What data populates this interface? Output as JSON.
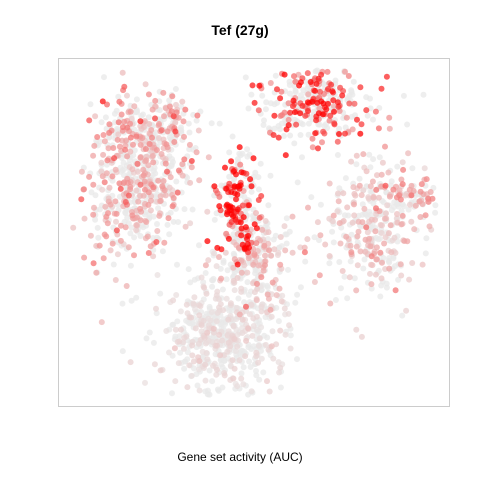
{
  "chart": {
    "title": "Tef (27g)",
    "xlabel": "Gene set activity (AUC)"
  },
  "chart_data": {
    "type": "scatter",
    "title": "Tef (27g)",
    "xlabel": "Gene set activity (AUC)",
    "ylabel": "",
    "grid": false,
    "legend": "none",
    "color_scale": {
      "low": "#e8e8e8",
      "high": "#ff0000"
    },
    "point_opacity": 0.75,
    "clusters": [
      {
        "name": "west",
        "cx": 0.2,
        "cy": 0.64,
        "sx": 0.065,
        "sy": 0.11,
        "n": 520,
        "activity": 0.16
      },
      {
        "name": "west-upper",
        "cx": 0.24,
        "cy": 0.8,
        "sx": 0.07,
        "sy": 0.05,
        "n": 180,
        "activity": 0.22
      },
      {
        "name": "north",
        "cx": 0.66,
        "cy": 0.87,
        "sx": 0.07,
        "sy": 0.055,
        "n": 300,
        "activity": 0.42
      },
      {
        "name": "center-red",
        "cx": 0.46,
        "cy": 0.58,
        "sx": 0.03,
        "sy": 0.08,
        "n": 200,
        "activity": 0.72
      },
      {
        "name": "center",
        "cx": 0.5,
        "cy": 0.42,
        "sx": 0.05,
        "sy": 0.07,
        "n": 200,
        "activity": 0.14
      },
      {
        "name": "east",
        "cx": 0.8,
        "cy": 0.52,
        "sx": 0.07,
        "sy": 0.1,
        "n": 320,
        "activity": 0.12
      },
      {
        "name": "east-arm",
        "cx": 0.91,
        "cy": 0.6,
        "sx": 0.04,
        "sy": 0.025,
        "n": 70,
        "activity": 0.2
      },
      {
        "name": "south",
        "cx": 0.42,
        "cy": 0.2,
        "sx": 0.075,
        "sy": 0.09,
        "n": 540,
        "activity": 0.04
      }
    ]
  }
}
